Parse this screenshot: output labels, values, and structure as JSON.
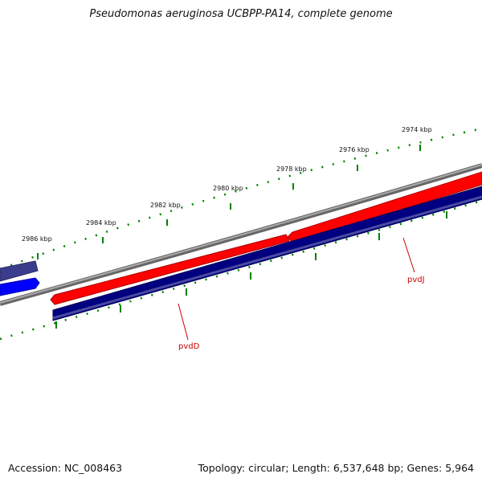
{
  "title": "Pseudomonas aeruginosa UCBPP-PA14, complete genome",
  "accession": "Accession: NC_008463",
  "summary": "Topology: circular; Length: 6,537,648 bp; Genes: 5,964",
  "ticks": [
    {
      "label": "2986 kbp"
    },
    {
      "label": "2984 kbp"
    },
    {
      "label": "2982 kbp"
    },
    {
      "label": "2980 kbp"
    },
    {
      "label": "2978 kbp"
    },
    {
      "label": "2976 kbp"
    },
    {
      "label": "2974 kbp"
    }
  ],
  "genes": [
    {
      "name": "pvdD"
    },
    {
      "name": "pvdJ"
    }
  ],
  "colors": {
    "backbone": "#808080",
    "forward_gene": "#ff0000",
    "reverse_gene": "#000080",
    "neighbor_blue": "#0000ff",
    "neighbor_purple": "#3c3c8c",
    "tick": "#008000",
    "label_line": "#cc0000"
  }
}
